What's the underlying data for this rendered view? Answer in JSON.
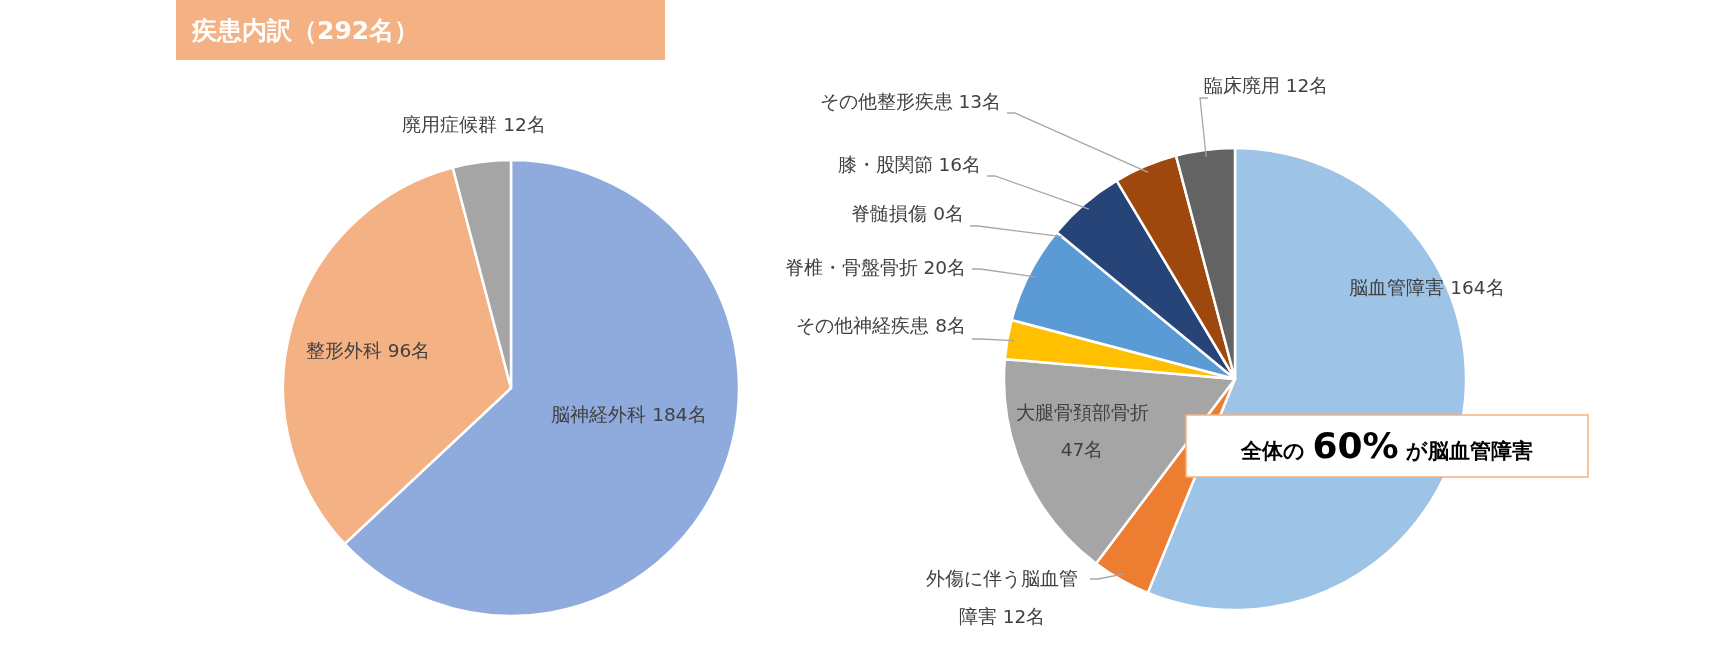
{
  "chart_data": [
    {
      "type": "pie",
      "title": "疾患内訳（292名）",
      "categories": [
        "脳神経外科",
        "整形外科",
        "廃用症候群"
      ],
      "values": [
        184,
        96,
        12
      ],
      "colors": [
        "#8faadc",
        "#f4b183",
        "#a5a5a5"
      ],
      "value_labels": [
        "184名",
        "96名",
        "12名"
      ]
    },
    {
      "type": "pie",
      "categories": [
        "脳血管障害",
        "外傷に伴う脳血管障害",
        "大腿骨頚部骨折",
        "その他神経疾患",
        "脊椎・骨盤骨折",
        "脊髄損傷",
        "膝・股関節",
        "その他整形疾患",
        "臨床廃用"
      ],
      "values": [
        164,
        12,
        47,
        8,
        20,
        0,
        16,
        13,
        12
      ],
      "colors": [
        "#9dc3e6",
        "#ed7d31",
        "#a5a5a5",
        "#ffc000",
        "#5b9bd5",
        "#4472c4",
        "#264478",
        "#9e480e",
        "#636363"
      ],
      "value_labels": [
        "164名",
        "12名",
        "47名",
        "8名",
        "20名",
        "0名",
        "16名",
        "13名",
        "12名"
      ],
      "annotations": [
        "全体の 60% が脳血管障害"
      ]
    }
  ]
}
